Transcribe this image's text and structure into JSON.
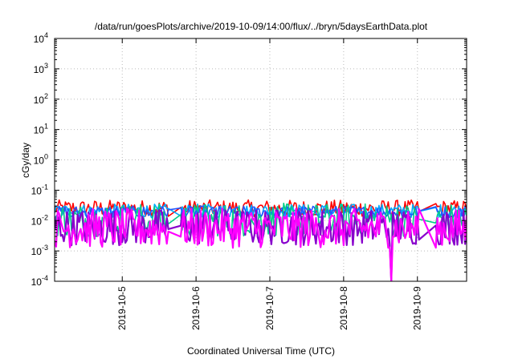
{
  "chart_data": {
    "type": "line",
    "title": "/data/run/goesPlots/archive/2019-10-09/14:00/flux/../bryn/5daysEarthData.plot",
    "xlabel": "Coordinated Universal Time (UTC)",
    "ylabel": "cGy/day",
    "yscale": "log",
    "ylim": [
      0.0001,
      10000
    ],
    "xlim": [
      "2019-10-04 02:00",
      "2019-10-09 16:00"
    ],
    "grid": true,
    "legend": "none",
    "x_ticks": [
      "2019-10-5",
      "2019-10-6",
      "2019-10-7",
      "2019-10-8",
      "2019-10-9"
    ],
    "y_ticks": [
      {
        "base": "10",
        "exp": "-4",
        "value": 0.0001
      },
      {
        "base": "10",
        "exp": "-3",
        "value": 0.001
      },
      {
        "base": "10",
        "exp": "-2",
        "value": 0.01
      },
      {
        "base": "10",
        "exp": "-1",
        "value": 0.1
      },
      {
        "base": "10",
        "exp": "0",
        "value": 1
      },
      {
        "base": "10",
        "exp": "1",
        "value": 10
      },
      {
        "base": "10",
        "exp": "2",
        "value": 100
      },
      {
        "base": "10",
        "exp": "3",
        "value": 1000
      },
      {
        "base": "10",
        "exp": "4",
        "value": 10000
      }
    ],
    "data_gaps": [
      [
        "2019-10-05 15:00",
        "2019-10-05 19:00"
      ],
      [
        "2019-10-09 00:30",
        "2019-10-09 06:00"
      ]
    ],
    "dip": {
      "x": "2019-10-08 15:30",
      "y": 0.0001
    },
    "series": [
      {
        "color": "#ff0000",
        "baseline": 0.027,
        "spread": 0.55,
        "x": [],
        "y": []
      },
      {
        "color": "#00aaff",
        "baseline": 0.022,
        "spread": 0.45,
        "x": [],
        "y": []
      },
      {
        "color": "#2255ff",
        "baseline": 0.02,
        "spread": 0.4,
        "x": [],
        "y": []
      },
      {
        "color": "#00cc88",
        "baseline": 0.012,
        "spread": 1.1,
        "x": [],
        "y": []
      },
      {
        "color": "#8800cc",
        "baseline": 0.007,
        "spread": 1.2,
        "x": [],
        "y": []
      },
      {
        "color": "#ff00ff",
        "baseline": 0.0065,
        "spread": 1.3,
        "x": [],
        "y": []
      }
    ]
  }
}
